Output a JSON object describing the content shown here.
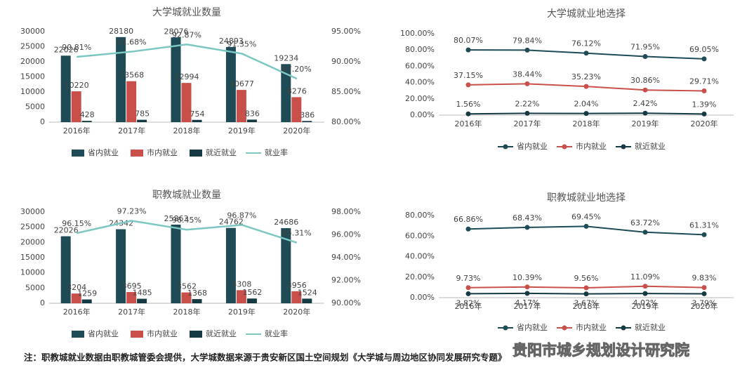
{
  "chart_data": [
    {
      "type": "bar",
      "title": "大学城就业数量",
      "categories": [
        "2016年",
        "2017年",
        "2018年",
        "2019年",
        "2020年"
      ],
      "series": [
        {
          "name": "省内就业",
          "color": "#1e4b55",
          "values": [
            22026,
            28180,
            28076,
            24893,
            19234
          ]
        },
        {
          "name": "市内就业",
          "color": "#c9504a",
          "values": [
            10220,
            13568,
            12994,
            10677,
            8276
          ]
        },
        {
          "name": "就近就业",
          "color": "#163a44",
          "values": [
            428,
            785,
            754,
            836,
            386
          ]
        },
        {
          "name": "就业率",
          "type": "line",
          "axis": "y2",
          "color": "#7cc7c2",
          "values": [
            90.81,
            91.68,
            92.87,
            91.35,
            87.2
          ],
          "value_labels": [
            "90.81%",
            "91.68%",
            "92.87%",
            "91.35%",
            "87.20%"
          ]
        }
      ],
      "ylim": [
        0,
        30000
      ],
      "yticks": [
        0,
        5000,
        10000,
        15000,
        20000,
        25000,
        30000
      ],
      "y2lim": [
        80,
        95
      ],
      "y2ticks": [
        {
          "value": 80,
          "label": "80.00%"
        },
        {
          "value": 85,
          "label": "85.00%"
        },
        {
          "value": 90,
          "label": "90.00%"
        },
        {
          "value": 95,
          "label": "95.00%"
        }
      ],
      "grid": false,
      "legend": "bottom"
    },
    {
      "type": "line",
      "title": "大学城就业地选择",
      "categories": [
        "2016年",
        "2017年",
        "2018年",
        "2019年",
        "2020年"
      ],
      "series": [
        {
          "name": "省内就业",
          "color": "#1e4b55",
          "values": [
            80.07,
            79.84,
            76.12,
            71.95,
            69.05
          ],
          "value_labels": [
            "80.07%",
            "79.84%",
            "76.12%",
            "71.95%",
            "69.05%"
          ]
        },
        {
          "name": "市内就业",
          "color": "#c9504a",
          "values": [
            37.15,
            38.44,
            35.23,
            30.86,
            29.71
          ],
          "value_labels": [
            "37.15%",
            "38.44%",
            "35.23%",
            "30.86%",
            "29.71%"
          ]
        },
        {
          "name": "就近就业",
          "color": "#163a44",
          "values": [
            1.56,
            2.22,
            2.04,
            2.42,
            1.39
          ],
          "value_labels": [
            "1.56%",
            "2.22%",
            "2.04%",
            "2.42%",
            "1.39%"
          ]
        }
      ],
      "ylim": [
        0,
        100
      ],
      "yticks": [
        {
          "value": 0,
          "label": "0.00%"
        },
        {
          "value": 20,
          "label": "20.00%"
        },
        {
          "value": 40,
          "label": "40.00%"
        },
        {
          "value": 60,
          "label": "60.00%"
        },
        {
          "value": 80,
          "label": "80.00%"
        },
        {
          "value": 100,
          "label": "100.00%"
        }
      ],
      "grid": false,
      "legend": "bottom"
    },
    {
      "type": "bar",
      "title": "职教城就业数量",
      "categories": [
        "2016年",
        "2017年",
        "2018年",
        "2019年",
        "2020年"
      ],
      "series": [
        {
          "name": "省内就业",
          "color": "#1e4b55",
          "values": [
            22026,
            24342,
            25863,
            24762,
            24686
          ]
        },
        {
          "name": "市内就业",
          "color": "#c9504a",
          "values": [
            3204,
            3695,
            3562,
            4308,
            3956
          ]
        },
        {
          "name": "就近就业",
          "color": "#163a44",
          "values": [
            1259,
            1485,
            1368,
            1562,
            1524
          ]
        },
        {
          "name": "就业率",
          "type": "line",
          "axis": "y2",
          "color": "#7cc7c2",
          "values": [
            96.15,
            97.23,
            96.45,
            96.87,
            95.31
          ],
          "value_labels": [
            "96.15%",
            "97.23%",
            "96.45%",
            "96.87%",
            "95.31%"
          ]
        }
      ],
      "ylim": [
        0,
        30000
      ],
      "yticks": [
        0,
        5000,
        10000,
        15000,
        20000,
        25000,
        30000
      ],
      "y2lim": [
        90,
        98
      ],
      "y2ticks": [
        {
          "value": 90,
          "label": "90.00%"
        },
        {
          "value": 92,
          "label": "92.00%"
        },
        {
          "value": 94,
          "label": "94.00%"
        },
        {
          "value": 96,
          "label": "96.00%"
        },
        {
          "value": 98,
          "label": "98.00%"
        }
      ],
      "grid": false,
      "legend": "bottom"
    },
    {
      "type": "line",
      "title": "职教城就业地选择",
      "categories": [
        "2016年",
        "2017年",
        "2018年",
        "2019年",
        "2020年"
      ],
      "series": [
        {
          "name": "省内就业",
          "color": "#1e4b55",
          "values": [
            66.86,
            68.43,
            69.45,
            63.72,
            61.31
          ],
          "value_labels": [
            "66.86%",
            "68.43%",
            "69.45%",
            "63.72%",
            "61.31%"
          ]
        },
        {
          "name": "市内就业",
          "color": "#c9504a",
          "values": [
            9.73,
            10.39,
            9.56,
            11.09,
            9.83
          ],
          "value_labels": [
            "9.73%",
            "10.39%",
            "9.56%",
            "11.09%",
            "9.83%"
          ]
        },
        {
          "name": "就近就业",
          "color": "#163a44",
          "values": [
            3.82,
            4.17,
            3.67,
            4.02,
            3.79
          ],
          "value_labels": [
            "3.82%",
            "4.17%",
            "3.67%",
            "4.02%",
            "3.79%"
          ]
        }
      ],
      "ylim": [
        0,
        80
      ],
      "yticks": [
        {
          "value": 0,
          "label": "0.00%"
        },
        {
          "value": 20,
          "label": "20.00%"
        },
        {
          "value": 40,
          "label": "40.00%"
        },
        {
          "value": 60,
          "label": "60.00%"
        },
        {
          "value": 80,
          "label": "80.00%"
        }
      ],
      "grid": false,
      "legend": "bottom"
    }
  ],
  "footnote": "注：职教城就业数据由职教城管委会提供，大学城数据来源于贵安新区国土空间规划《大学城与周边地区协同发展研究专题》",
  "watermark": "贵阳市城乡规划设计研究院"
}
